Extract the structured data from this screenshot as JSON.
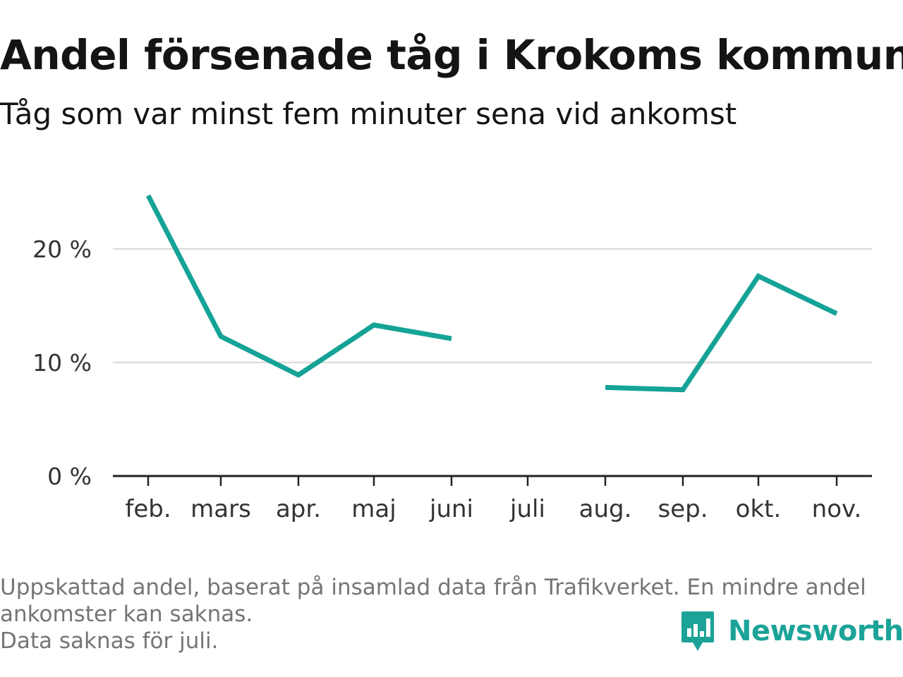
{
  "title": "Andel försenade tåg i Krokoms kommun",
  "subtitle": "Tåg som var minst fem minuter sena vid ankomst",
  "footnote": {
    "line1": "Uppskattad andel, baserat på insamlad data från Trafikverket. En mindre andel",
    "line2": "ankomster kan saknas.",
    "line3": "Data saknas för juli."
  },
  "brand": {
    "name": "Newsworthy",
    "logo_icon": "newsworthy-logo-icon",
    "color": "#1ba398"
  },
  "chart_data": {
    "type": "line",
    "categories": [
      "feb.",
      "mars",
      "apr.",
      "maj",
      "juni",
      "juli",
      "aug.",
      "sep.",
      "okt.",
      "nov."
    ],
    "series": [
      {
        "color": "#14a396",
        "values": [
          24.7,
          12.3,
          8.9,
          13.3,
          12.1,
          null,
          7.8,
          7.6,
          17.6,
          14.3
        ]
      }
    ],
    "yticks": [
      0,
      10,
      20
    ],
    "ytick_labels": [
      "0 %",
      "10 %",
      "20 %"
    ],
    "ylim": [
      0,
      25
    ],
    "grid": true,
    "legend": "none"
  }
}
